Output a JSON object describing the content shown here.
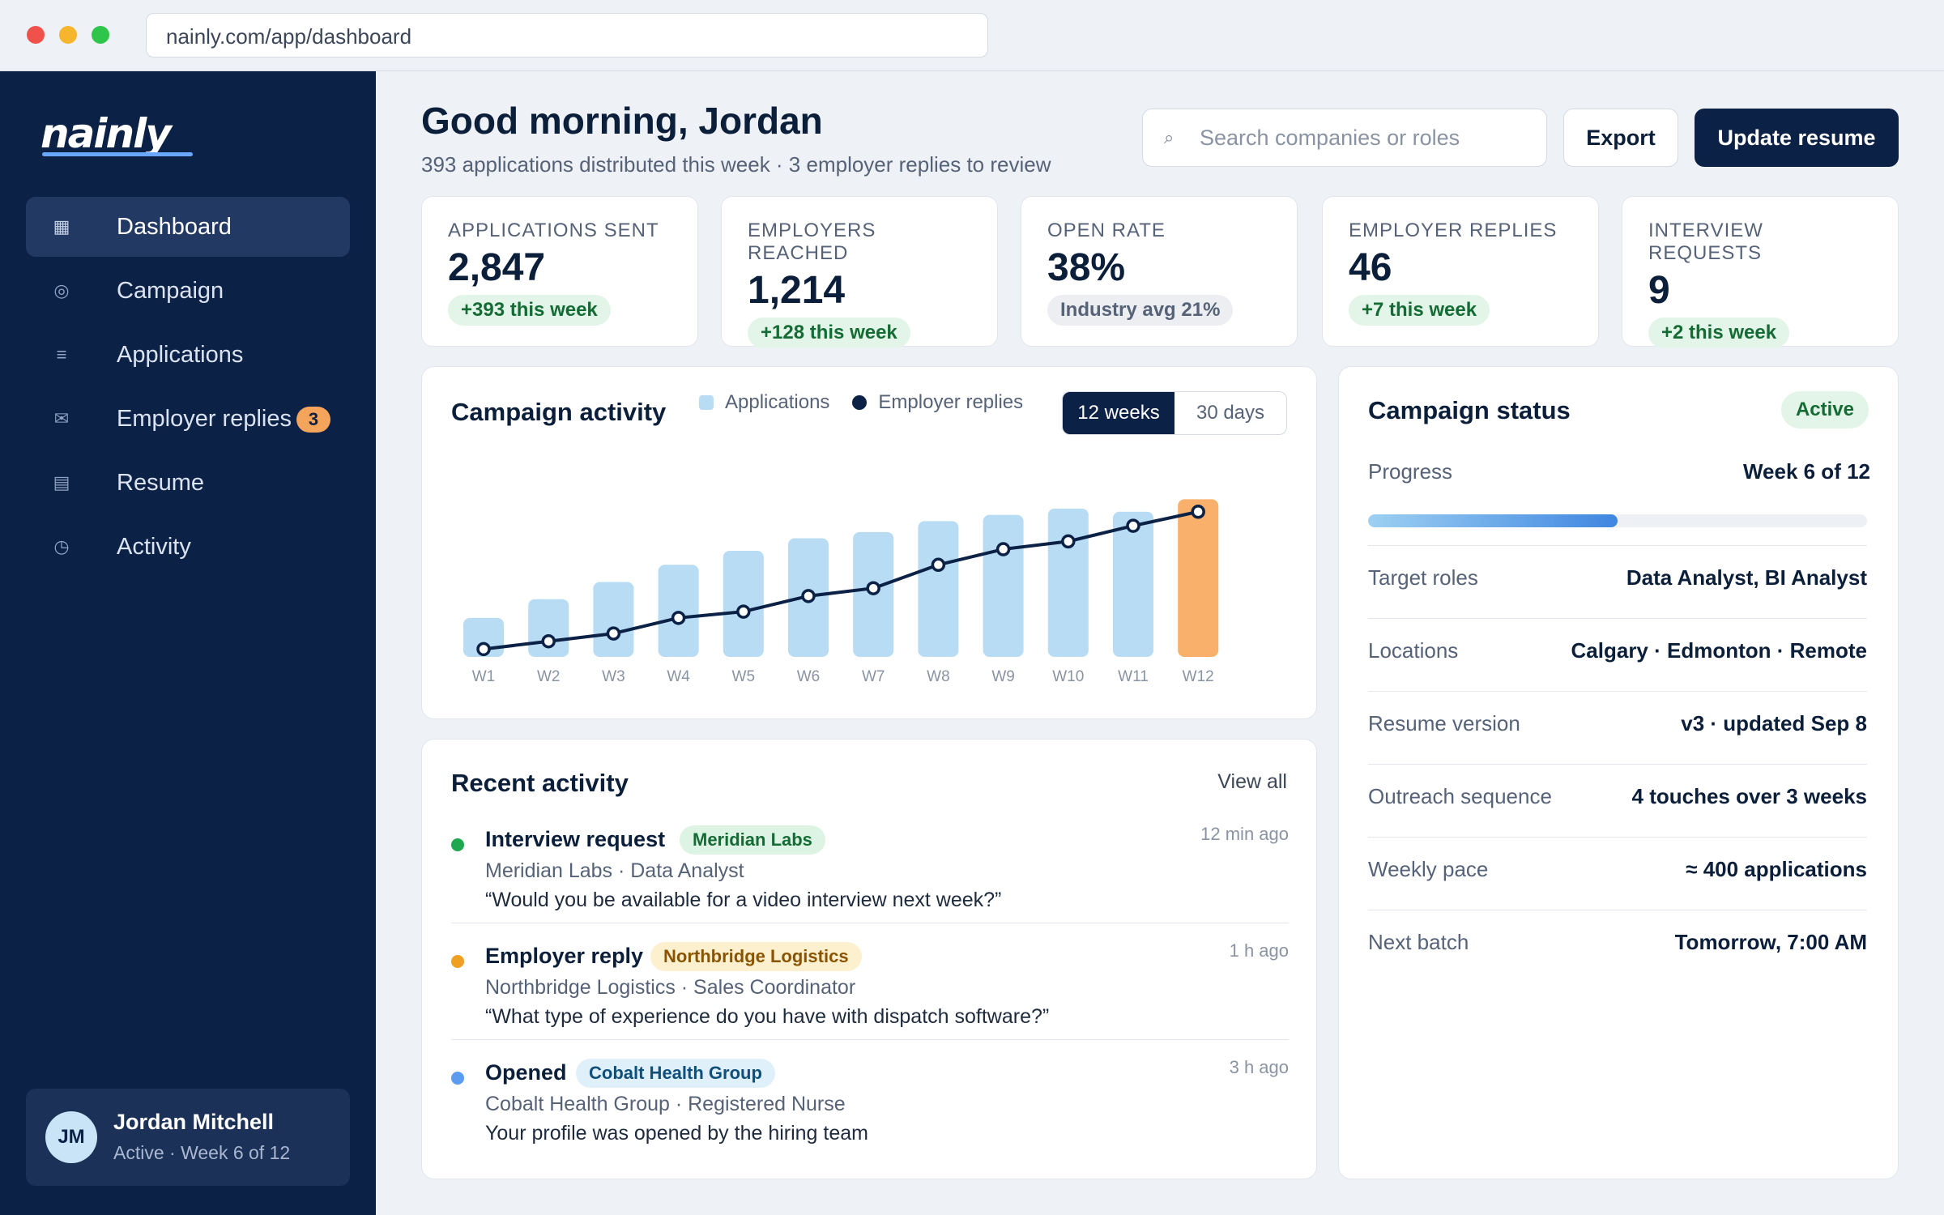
{
  "browser": {
    "url": "nainly.com/app/dashboard"
  },
  "sidebar": {
    "logo": "nainly",
    "items": [
      {
        "label": "Dashboard",
        "icon": "grid-icon",
        "glyph": "▦"
      },
      {
        "label": "Campaign",
        "icon": "target-icon",
        "glyph": "◎"
      },
      {
        "label": "Applications",
        "icon": "list-icon",
        "glyph": "≡"
      },
      {
        "label": "Employer replies",
        "icon": "mail-icon",
        "glyph": "✉",
        "badge": "3"
      },
      {
        "label": "Resume",
        "icon": "document-icon",
        "glyph": "▤"
      },
      {
        "label": "Activity",
        "icon": "clock-icon",
        "glyph": "◷"
      }
    ],
    "user": {
      "initials": "JM",
      "name": "Jordan Mitchell",
      "status": "Active · Week 6 of 12"
    }
  },
  "header": {
    "greeting": "Good morning, Jordan",
    "subtitle": "393 applications distributed this week · 3 employer replies to review",
    "search_placeholder": "Search companies or roles",
    "export_label": "Export",
    "primary_label": "Update resume"
  },
  "kpis": [
    {
      "label": "APPLICATIONS SENT",
      "value": "2,847",
      "delta": "+393 this week",
      "tone": "positive"
    },
    {
      "label": "EMPLOYERS REACHED",
      "value": "1,214",
      "delta": "+128 this week",
      "tone": "positive"
    },
    {
      "label": "OPEN RATE",
      "value": "38%",
      "delta": "Industry avg 21%",
      "tone": "neutral"
    },
    {
      "label": "EMPLOYER REPLIES",
      "value": "46",
      "delta": "+7 this week",
      "tone": "positive"
    },
    {
      "label": "INTERVIEW REQUESTS",
      "value": "9",
      "delta": "+2 this week",
      "tone": "positive"
    }
  ],
  "chart": {
    "title": "Campaign activity",
    "legend_applications": "Applications",
    "legend_replies": "Employer replies",
    "range_options": [
      "12 weeks",
      "30 days"
    ],
    "range_selected": "12 weeks"
  },
  "chart_data": {
    "type": "bar",
    "categories": [
      "W1",
      "W2",
      "W3",
      "W4",
      "W5",
      "W6",
      "W7",
      "W8",
      "W9",
      "W10",
      "W11",
      "W12"
    ],
    "series": [
      {
        "name": "Applications",
        "type": "bar",
        "values": [
          25,
          37,
          48,
          59,
          68,
          76,
          80,
          87,
          91,
          95,
          93,
          101
        ]
      },
      {
        "name": "Employer replies",
        "type": "line",
        "values": [
          5,
          10,
          15,
          25,
          29,
          39,
          44,
          59,
          69,
          74,
          84,
          93
        ]
      }
    ],
    "highlight_category": "W12",
    "colors": {
      "bar": "#b7dcf3",
      "bar_highlight": "#f8b06b",
      "line": "#0c2146"
    },
    "ylim": [
      0,
      110
    ],
    "grid": false
  },
  "activity": {
    "title": "Recent activity",
    "view_all": "View all",
    "items": [
      {
        "title": "Interview request",
        "tag": "Meridian Labs",
        "meta": "Meridian Labs · Data Analyst",
        "quote": "“Would you be available for a video interview next week?”",
        "time": "12 min ago",
        "dot_color": "#1fa84f",
        "tag_bg": "#ddf3e4",
        "tag_color": "#146b34"
      },
      {
        "title": "Employer reply",
        "tag": "Northbridge Logistics",
        "meta": "Northbridge Logistics · Sales Coordinator",
        "quote": "“What type of experience do you have with dispatch software?”",
        "time": "1 h ago",
        "dot_color": "#f0a020",
        "tag_bg": "#fdf0cf",
        "tag_color": "#8a5300"
      },
      {
        "title": "Opened",
        "tag": "Cobalt Health Group",
        "meta": "Cobalt Health Group · Registered Nurse",
        "quote": "Your profile was opened by the hiring team",
        "time": "3 h ago",
        "dot_color": "#5b9cf0",
        "tag_bg": "#dff0fb",
        "tag_color": "#0f4f7a"
      }
    ]
  },
  "status": {
    "title": "Campaign status",
    "badge": "Active",
    "progress_label": "Progress",
    "progress_value": "Week 6 of 12",
    "progress_fraction": 0.5,
    "rows": [
      {
        "label": "Target roles",
        "value": "Data Analyst, BI Analyst"
      },
      {
        "label": "Locations",
        "value": "Calgary · Edmonton · Remote"
      },
      {
        "label": "Resume version",
        "value": "v3 · updated Sep 8"
      },
      {
        "label": "Outreach sequence",
        "value": "4 touches over 3 weeks"
      },
      {
        "label": "Weekly pace",
        "value": "≈ 400 applications"
      },
      {
        "label": "Next batch",
        "value": "Tomorrow, 7:00 AM"
      }
    ]
  }
}
